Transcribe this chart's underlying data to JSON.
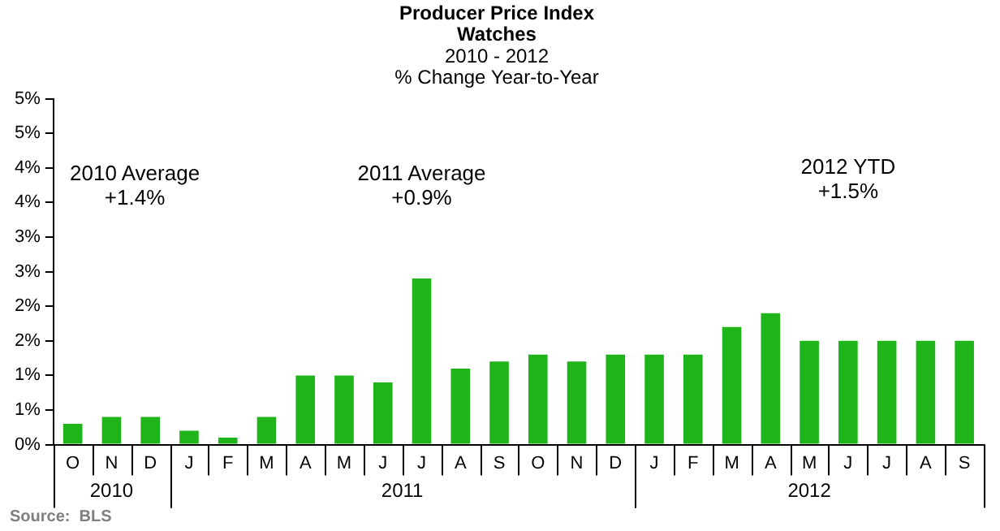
{
  "chart_data": {
    "type": "bar",
    "title": "Producer Price Index\nWatches",
    "subtitle": "2010 - 2012\n% Change Year-to-Year",
    "categories": [
      "O",
      "N",
      "D",
      "J",
      "F",
      "M",
      "A",
      "M",
      "J",
      "J",
      "A",
      "S",
      "O",
      "N",
      "D",
      "J",
      "F",
      "M",
      "A",
      "M",
      "J",
      "J",
      "A",
      "S"
    ],
    "values": [
      0.3,
      0.4,
      0.4,
      0.2,
      0.1,
      0.4,
      1.0,
      1.0,
      0.9,
      2.4,
      1.1,
      1.2,
      1.3,
      1.2,
      1.3,
      1.3,
      1.3,
      1.7,
      1.9,
      1.5,
      1.5,
      1.5,
      1.5,
      1.5
    ],
    "color": "#1fb51a",
    "ylim": [
      0,
      5
    ],
    "yticks": [
      {
        "value": 0,
        "label": "0%"
      },
      {
        "value": 0.5,
        "label": "1%"
      },
      {
        "value": 1,
        "label": "1%"
      },
      {
        "value": 1.5,
        "label": "2%"
      },
      {
        "value": 2,
        "label": "2%"
      },
      {
        "value": 2.5,
        "label": "3%"
      },
      {
        "value": 3,
        "label": "3%"
      },
      {
        "value": 3.5,
        "label": "4%"
      },
      {
        "value": 4,
        "label": "4%"
      },
      {
        "value": 4.5,
        "label": "5%"
      },
      {
        "value": 5,
        "label": "5%"
      }
    ],
    "grid": false,
    "legend": false,
    "annotations": [
      "2010 Average\n+1.4%",
      "2011 Average\n+0.9%",
      "2012 YTD\n+1.5%",
      "2010",
      "2011",
      "2012",
      "Source:  BLS"
    ]
  }
}
